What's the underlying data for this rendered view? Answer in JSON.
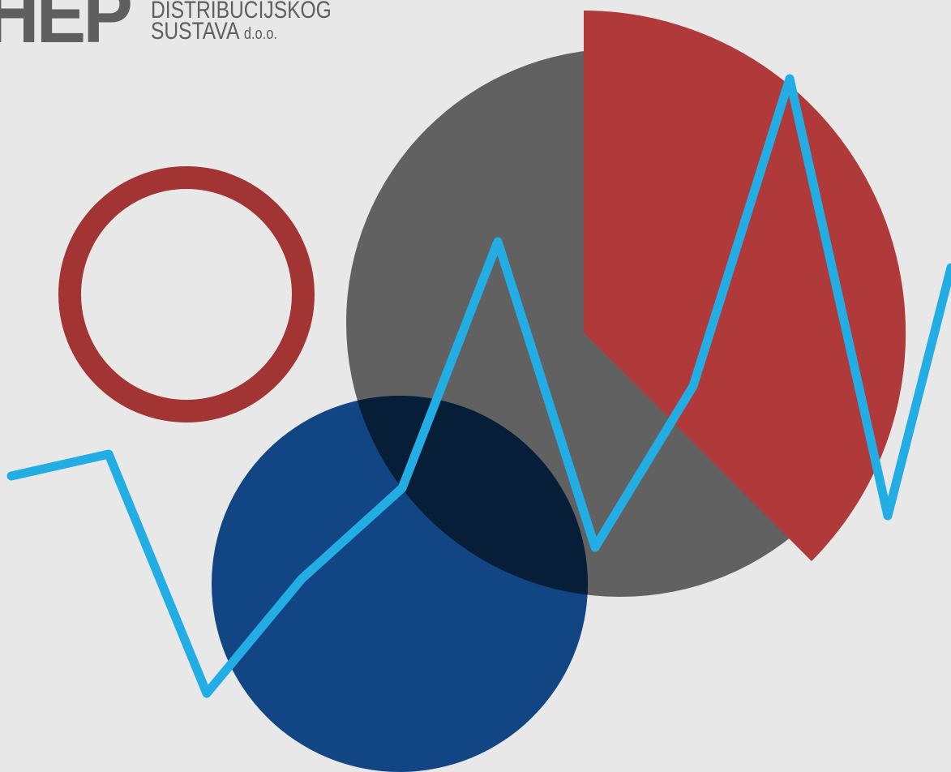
{
  "logo": {
    "mark": "HEP",
    "line1": "DISTRIBUCIJSKOG",
    "line2": "SUSTAVA",
    "suffix": "d.o.o."
  },
  "colors": {
    "background": "#e8e8e8",
    "gray_circle": "#616161",
    "red_sector": "#b03a3a",
    "red_ring": "#a33434",
    "blue_circle": "#124584",
    "overlap": "#071e38",
    "line": "#22aee5",
    "logo_text": "#5f5f5f"
  }
}
